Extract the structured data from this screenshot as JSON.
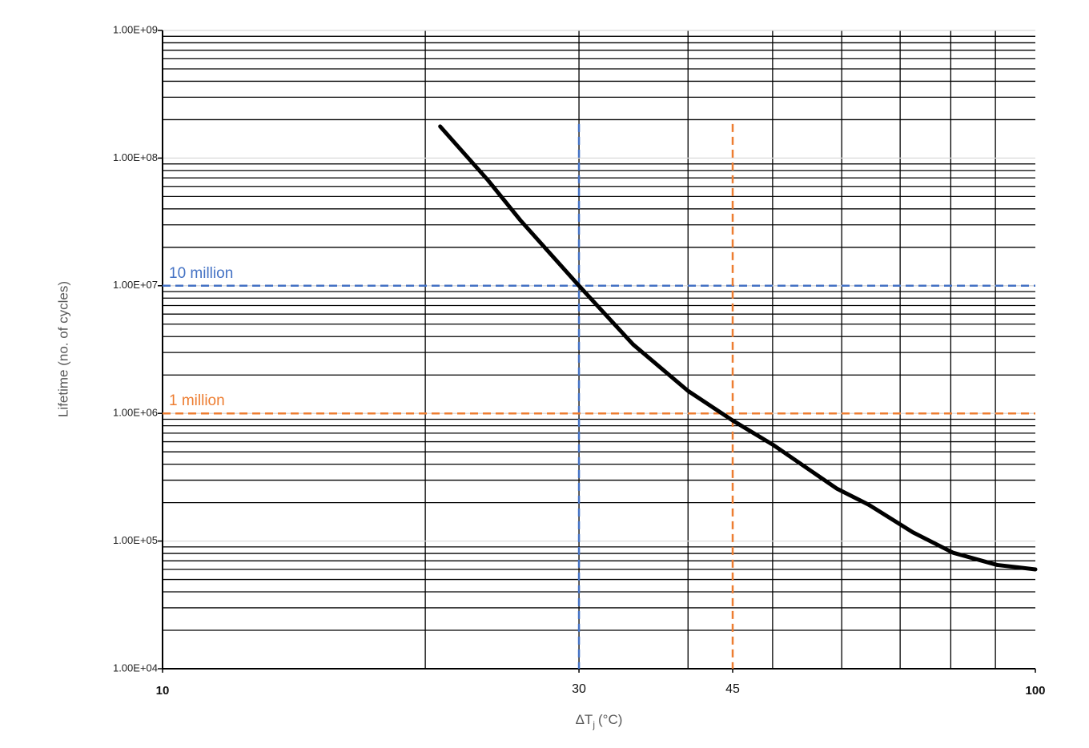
{
  "chart_data": {
    "type": "line",
    "x_label": "ΔT",
    "x_label_sub": "j",
    "x_label_unit": "(°C)",
    "y_label": "Lifetime (no. of cycles)",
    "log_x": true,
    "log_y": true,
    "grid": true,
    "minor_grid": true,
    "xlim": [
      10,
      100
    ],
    "ylim": [
      10000,
      1000000000
    ],
    "xticks": [
      10,
      30,
      45,
      100
    ],
    "yticks": [
      {
        "value": 10000,
        "label": "1.00E+04"
      },
      {
        "value": 100000,
        "label": "1.00E+05"
      },
      {
        "value": 1000000,
        "label": "1.00E+06"
      },
      {
        "value": 10000000,
        "label": "1.00E+07"
      },
      {
        "value": 100000000,
        "label": "1.00E+08"
      },
      {
        "value": 1000000000,
        "label": "1.00E+09"
      }
    ],
    "x": [
      20.8,
      23.6,
      25.7,
      30,
      34.6,
      40,
      45,
      50,
      59.2,
      64.4,
      72.4,
      80.5,
      90.4,
      100
    ],
    "series": [
      {
        "color": "#000000",
        "values": [
          177000000,
          67000000,
          32600000,
          10000000,
          3470000,
          1500000,
          880000,
          570000,
          258000,
          193000,
          117000,
          81000,
          65000,
          60000
        ]
      }
    ],
    "reference_lines": [
      {
        "label": "10 million",
        "x": 30,
        "y": 10000000,
        "color": "#4472c4"
      },
      {
        "label": "1 million",
        "x": 45,
        "y": 1000000,
        "color": "#ed7d31"
      }
    ]
  }
}
